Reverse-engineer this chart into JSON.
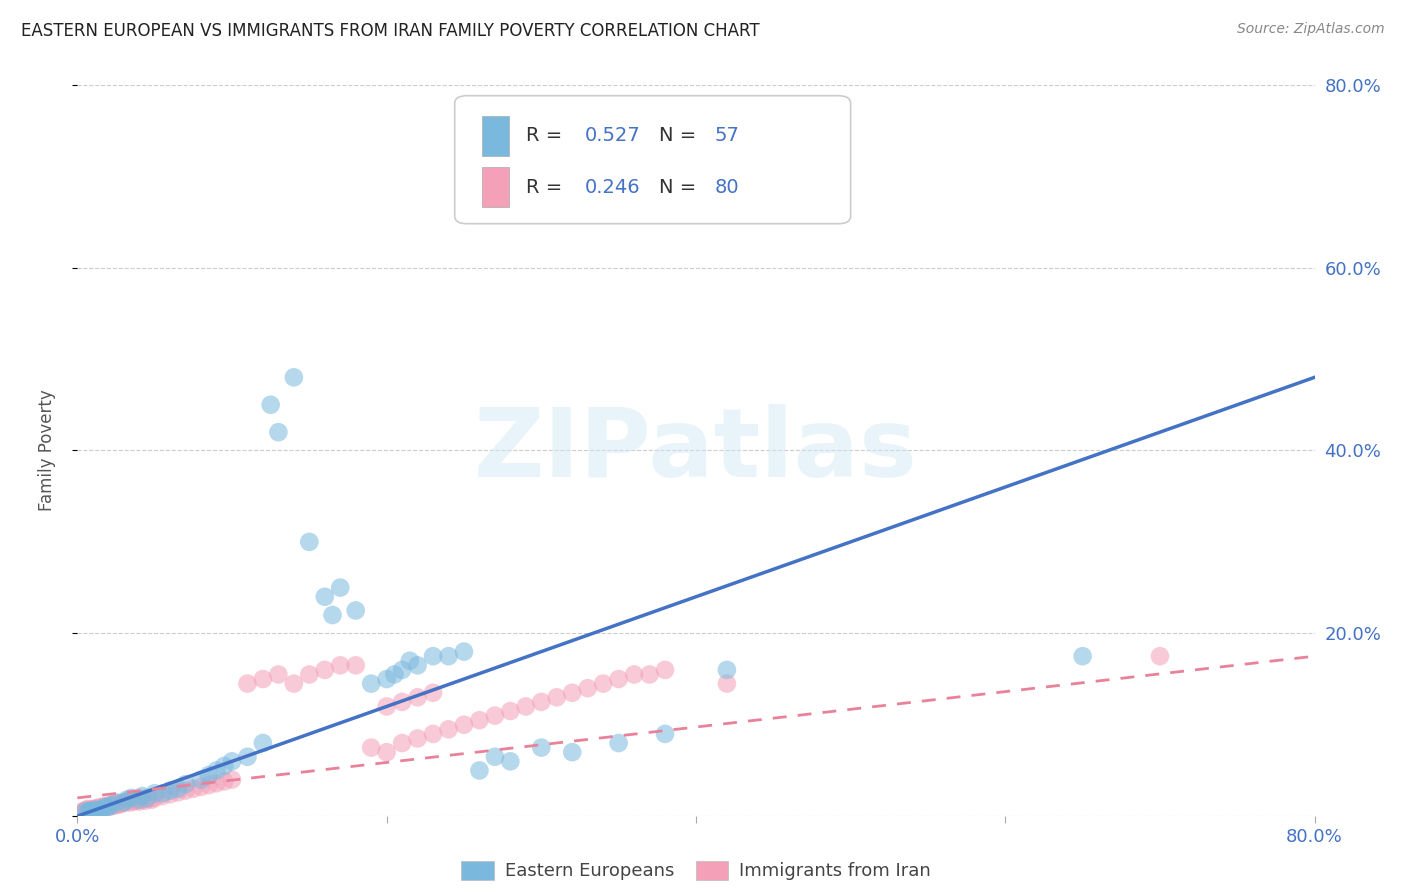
{
  "title": "EASTERN EUROPEAN VS IMMIGRANTS FROM IRAN FAMILY POVERTY CORRELATION CHART",
  "source": "Source: ZipAtlas.com",
  "ylabel": "Family Poverty",
  "xlim": [
    0,
    0.8
  ],
  "ylim": [
    0,
    0.8
  ],
  "ytick_values": [
    0.0,
    0.2,
    0.4,
    0.6,
    0.8
  ],
  "xtick_values": [
    0.0,
    0.2,
    0.4,
    0.6,
    0.8
  ],
  "grid_color": "#cccccc",
  "background_color": "#ffffff",
  "watermark_text": "ZIPatlas",
  "legend_color": "#4472c4",
  "series1_color": "#7ab8de",
  "series2_color": "#f4a0b8",
  "trendline1_color": "#4472c4",
  "trendline2_color": "#e8829a",
  "series1_name": "Eastern Europeans",
  "series2_name": "Immigrants from Iran",
  "blue_trendline_x": [
    0.0,
    0.8
  ],
  "blue_trendline_y": [
    0.0,
    0.48
  ],
  "pink_trendline_x": [
    0.0,
    0.8
  ],
  "pink_trendline_y": [
    0.02,
    0.175
  ],
  "blue_x": [
    0.005,
    0.007,
    0.008,
    0.009,
    0.01,
    0.012,
    0.013,
    0.015,
    0.016,
    0.018,
    0.02,
    0.022,
    0.025,
    0.03,
    0.032,
    0.035,
    0.04,
    0.042,
    0.045,
    0.05,
    0.055,
    0.06,
    0.065,
    0.07,
    0.08,
    0.085,
    0.09,
    0.095,
    0.1,
    0.11,
    0.12,
    0.125,
    0.13,
    0.14,
    0.15,
    0.16,
    0.165,
    0.17,
    0.18,
    0.19,
    0.2,
    0.205,
    0.21,
    0.215,
    0.22,
    0.23,
    0.24,
    0.25,
    0.26,
    0.27,
    0.28,
    0.3,
    0.32,
    0.35,
    0.38,
    0.42,
    0.65
  ],
  "blue_y": [
    0.005,
    0.005,
    0.006,
    0.005,
    0.006,
    0.007,
    0.006,
    0.007,
    0.008,
    0.01,
    0.01,
    0.012,
    0.015,
    0.015,
    0.018,
    0.02,
    0.018,
    0.022,
    0.02,
    0.025,
    0.025,
    0.028,
    0.03,
    0.035,
    0.04,
    0.045,
    0.05,
    0.055,
    0.06,
    0.065,
    0.08,
    0.45,
    0.42,
    0.48,
    0.3,
    0.24,
    0.22,
    0.25,
    0.225,
    0.145,
    0.15,
    0.155,
    0.16,
    0.17,
    0.165,
    0.175,
    0.175,
    0.18,
    0.05,
    0.065,
    0.06,
    0.075,
    0.07,
    0.08,
    0.09,
    0.16,
    0.175
  ],
  "pink_x": [
    0.003,
    0.005,
    0.006,
    0.007,
    0.008,
    0.009,
    0.01,
    0.011,
    0.012,
    0.013,
    0.014,
    0.015,
    0.016,
    0.017,
    0.018,
    0.019,
    0.02,
    0.021,
    0.022,
    0.023,
    0.024,
    0.025,
    0.026,
    0.027,
    0.028,
    0.03,
    0.032,
    0.034,
    0.036,
    0.038,
    0.04,
    0.042,
    0.044,
    0.046,
    0.048,
    0.05,
    0.055,
    0.06,
    0.065,
    0.07,
    0.075,
    0.08,
    0.085,
    0.09,
    0.095,
    0.1,
    0.11,
    0.12,
    0.13,
    0.14,
    0.15,
    0.16,
    0.17,
    0.18,
    0.19,
    0.2,
    0.21,
    0.22,
    0.23,
    0.24,
    0.25,
    0.26,
    0.27,
    0.28,
    0.29,
    0.3,
    0.31,
    0.32,
    0.33,
    0.34,
    0.35,
    0.36,
    0.37,
    0.38,
    0.2,
    0.21,
    0.22,
    0.23,
    0.7,
    0.42
  ],
  "pink_y": [
    0.005,
    0.006,
    0.007,
    0.008,
    0.006,
    0.007,
    0.008,
    0.007,
    0.008,
    0.009,
    0.008,
    0.01,
    0.009,
    0.01,
    0.011,
    0.01,
    0.011,
    0.012,
    0.011,
    0.012,
    0.013,
    0.012,
    0.013,
    0.014,
    0.013,
    0.015,
    0.016,
    0.015,
    0.016,
    0.017,
    0.016,
    0.018,
    0.017,
    0.019,
    0.018,
    0.02,
    0.022,
    0.024,
    0.026,
    0.028,
    0.03,
    0.032,
    0.034,
    0.036,
    0.038,
    0.04,
    0.145,
    0.15,
    0.155,
    0.145,
    0.155,
    0.16,
    0.165,
    0.165,
    0.075,
    0.07,
    0.08,
    0.085,
    0.09,
    0.095,
    0.1,
    0.105,
    0.11,
    0.115,
    0.12,
    0.125,
    0.13,
    0.135,
    0.14,
    0.145,
    0.15,
    0.155,
    0.155,
    0.16,
    0.12,
    0.125,
    0.13,
    0.135,
    0.175,
    0.145
  ]
}
